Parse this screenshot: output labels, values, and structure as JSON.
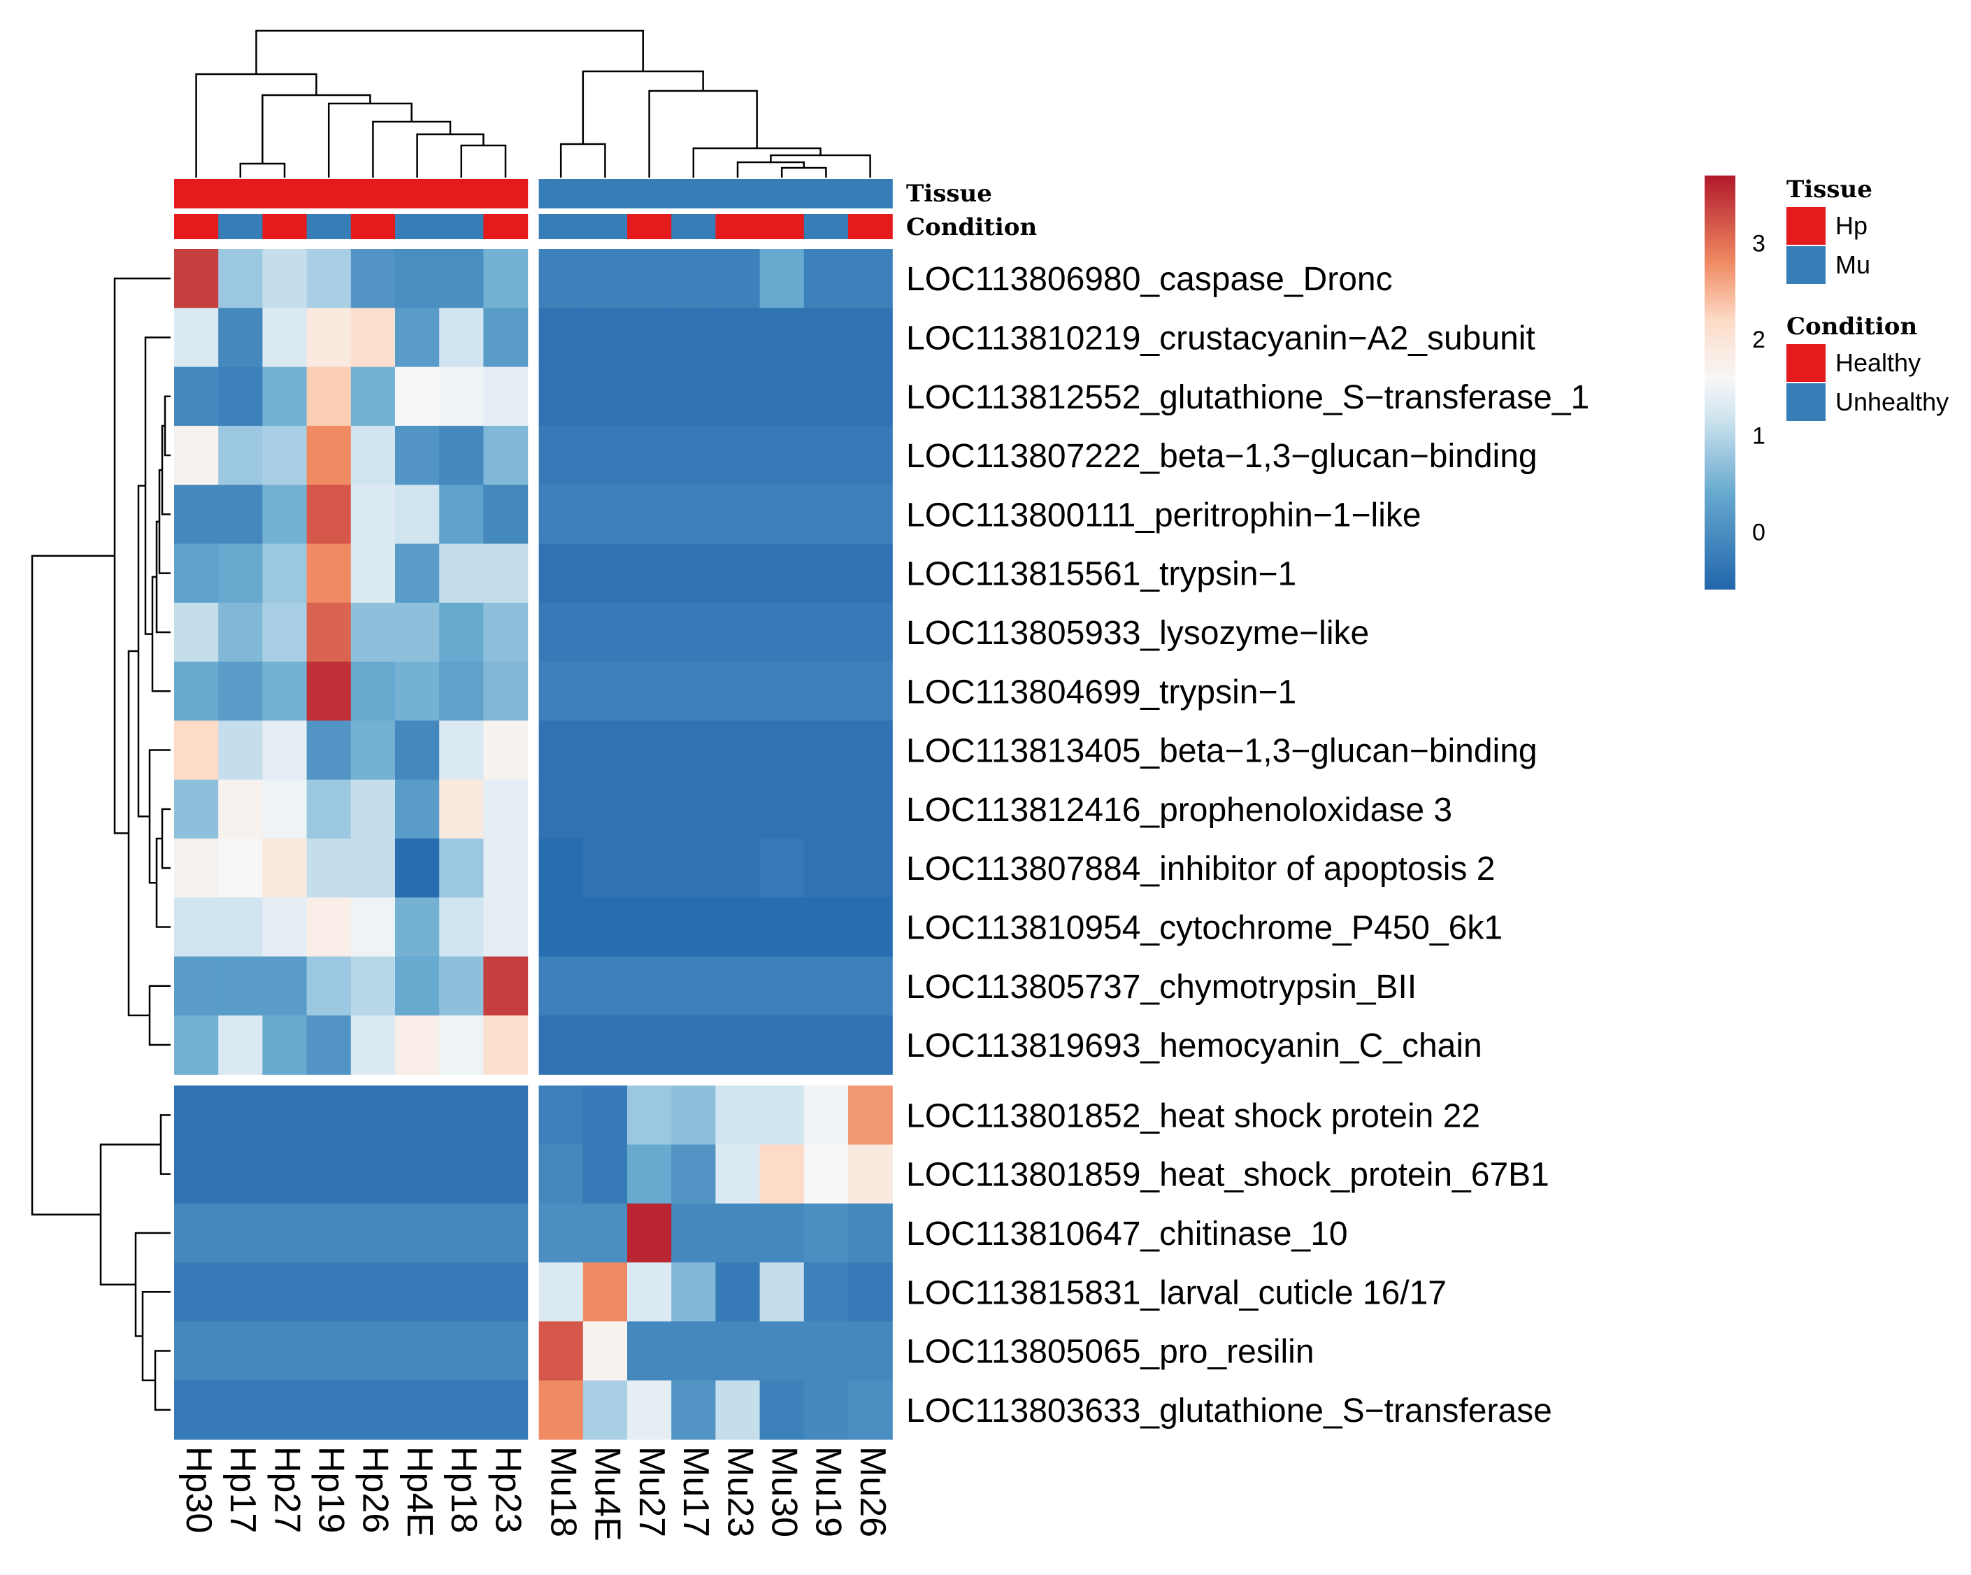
{
  "chart_data": {
    "type": "heatmap",
    "columns": [
      "Hp30",
      "Hp17",
      "Hp27",
      "Hp19",
      "Hp26",
      "Hp4E",
      "Hp18",
      "Hp23",
      "Mu18",
      "Mu4E",
      "Mu27",
      "Mu17",
      "Mu23",
      "Mu30",
      "Mu19",
      "Mu26"
    ],
    "rows": [
      "LOC113806980_caspase_Dronc",
      "LOC113810219_crustacyanin−A2_subunit",
      "LOC113812552_glutathione_S−transferase_1",
      "LOC113807222_beta−1,3−glucan−binding",
      "LOC113800111_peritrophin−1−like",
      "LOC113815561_trypsin−1",
      "LOC113805933_lysozyme−like",
      "LOC113804699_trypsin−1",
      "LOC113813405_beta−1,3−glucan−binding",
      "LOC113812416_prophenoloxidase 3",
      "LOC113807884_inhibitor of apoptosis 2",
      "LOC113810954_cytochrome_P450_6k1",
      "LOC113805737_chymotrypsin_BII",
      "LOC113819693_hemocyanin_C_chain",
      "LOC113801852_heat shock protein 22",
      "LOC113801859_heat_shock_protein_67B1",
      "LOC113810647_chitinase_10",
      "LOC113815831_larval_cuticle 16/17",
      "LOC113805065_pro_resilin",
      "LOC113803633_glutathione_S−transferase"
    ],
    "values": [
      [
        3.4,
        0.8,
        1.1,
        0.9,
        0.1,
        0.0,
        0.0,
        0.5,
        -0.2,
        -0.2,
        -0.2,
        -0.2,
        -0.2,
        0.4,
        -0.2,
        -0.2
      ],
      [
        1.3,
        -0.1,
        1.3,
        1.9,
        2.1,
        0.2,
        1.2,
        0.2,
        -0.4,
        -0.4,
        -0.4,
        -0.4,
        -0.4,
        -0.4,
        -0.4,
        -0.4
      ],
      [
        -0.1,
        -0.2,
        0.5,
        2.3,
        0.5,
        1.6,
        1.5,
        1.4,
        -0.4,
        -0.4,
        -0.4,
        -0.4,
        -0.4,
        -0.4,
        -0.4,
        -0.4
      ],
      [
        1.7,
        0.8,
        0.9,
        2.8,
        1.2,
        0.1,
        -0.1,
        0.6,
        -0.3,
        -0.3,
        -0.3,
        -0.3,
        -0.3,
        -0.3,
        -0.3,
        -0.3
      ],
      [
        -0.1,
        -0.1,
        0.5,
        3.2,
        1.3,
        1.2,
        0.3,
        -0.1,
        -0.2,
        -0.2,
        -0.2,
        -0.2,
        -0.2,
        -0.2,
        -0.2,
        -0.2
      ],
      [
        0.3,
        0.4,
        0.8,
        2.8,
        1.3,
        0.2,
        1.1,
        1.1,
        -0.4,
        -0.4,
        -0.4,
        -0.4,
        -0.4,
        -0.4,
        -0.4,
        -0.4
      ],
      [
        1.1,
        0.6,
        0.9,
        3.1,
        0.7,
        0.7,
        0.4,
        0.7,
        -0.3,
        -0.3,
        -0.3,
        -0.3,
        -0.3,
        -0.3,
        -0.3,
        -0.3
      ],
      [
        0.4,
        0.2,
        0.5,
        3.5,
        0.4,
        0.5,
        0.3,
        0.6,
        -0.2,
        -0.2,
        -0.2,
        -0.2,
        -0.2,
        -0.2,
        -0.2,
        -0.2
      ],
      [
        2.2,
        1.1,
        1.4,
        0.1,
        0.5,
        -0.1,
        1.3,
        1.7,
        -0.4,
        -0.4,
        -0.4,
        -0.4,
        -0.4,
        -0.4,
        -0.4,
        -0.4
      ],
      [
        0.7,
        1.7,
        1.5,
        0.8,
        1.1,
        0.2,
        1.9,
        1.4,
        -0.4,
        -0.4,
        -0.4,
        -0.4,
        -0.4,
        -0.4,
        -0.4,
        -0.4
      ],
      [
        1.7,
        1.6,
        1.9,
        1.1,
        1.1,
        -0.5,
        0.8,
        1.4,
        -0.5,
        -0.4,
        -0.4,
        -0.4,
        -0.4,
        -0.3,
        -0.4,
        -0.4
      ],
      [
        1.2,
        1.2,
        1.4,
        1.8,
        1.5,
        0.5,
        1.2,
        1.4,
        -0.5,
        -0.5,
        -0.5,
        -0.5,
        -0.5,
        -0.5,
        -0.5,
        -0.5
      ],
      [
        0.2,
        0.2,
        0.2,
        0.8,
        1.0,
        0.4,
        0.7,
        3.4,
        -0.2,
        -0.2,
        -0.2,
        -0.2,
        -0.2,
        -0.2,
        -0.2,
        -0.2
      ],
      [
        0.5,
        1.3,
        0.4,
        0.1,
        1.3,
        1.8,
        1.5,
        2.1,
        -0.4,
        -0.4,
        -0.4,
        -0.4,
        -0.4,
        -0.4,
        -0.4,
        -0.4
      ],
      [
        -0.4,
        -0.4,
        -0.4,
        -0.4,
        -0.4,
        -0.4,
        -0.4,
        -0.4,
        -0.2,
        -0.3,
        0.8,
        0.7,
        1.2,
        1.2,
        1.5,
        2.7
      ],
      [
        -0.4,
        -0.4,
        -0.4,
        -0.4,
        -0.4,
        -0.4,
        -0.4,
        -0.4,
        -0.1,
        -0.3,
        0.4,
        0.1,
        1.3,
        2.2,
        1.6,
        1.9
      ],
      [
        -0.1,
        -0.1,
        -0.1,
        -0.1,
        -0.1,
        -0.1,
        -0.1,
        -0.1,
        0.0,
        0.0,
        3.6,
        -0.1,
        -0.1,
        -0.1,
        0.0,
        -0.1
      ],
      [
        -0.3,
        -0.3,
        -0.3,
        -0.3,
        -0.3,
        -0.3,
        -0.3,
        -0.3,
        1.3,
        2.8,
        1.3,
        0.6,
        -0.3,
        1.1,
        -0.2,
        -0.3
      ],
      [
        -0.1,
        -0.1,
        -0.1,
        -0.1,
        -0.1,
        -0.1,
        -0.1,
        -0.1,
        3.2,
        1.7,
        -0.1,
        -0.1,
        -0.1,
        -0.1,
        -0.1,
        -0.1
      ],
      [
        -0.3,
        -0.3,
        -0.3,
        -0.3,
        -0.3,
        -0.3,
        -0.3,
        -0.3,
        2.8,
        0.9,
        1.4,
        0.1,
        1.1,
        -0.2,
        -0.1,
        0.0
      ]
    ],
    "row_split_after": 14,
    "col_split_after": 8,
    "annotations": {
      "Tissue": [
        "Hp",
        "Hp",
        "Hp",
        "Hp",
        "Hp",
        "Hp",
        "Hp",
        "Hp",
        "Mu",
        "Mu",
        "Mu",
        "Mu",
        "Mu",
        "Mu",
        "Mu",
        "Mu"
      ],
      "Condition": [
        "Healthy",
        "Unhealthy",
        "Healthy",
        "Unhealthy",
        "Healthy",
        "Unhealthy",
        "Unhealthy",
        "Healthy",
        "Unhealthy",
        "Unhealthy",
        "Healthy",
        "Unhealthy",
        "Healthy",
        "Healthy",
        "Unhealthy",
        "Healthy"
      ]
    },
    "annotation_labels": [
      "Tissue",
      "Condition"
    ],
    "color_scale": {
      "min": -0.6,
      "max": 3.7,
      "ticks": [
        "0",
        "1",
        "2",
        "3"
      ],
      "tick_values": [
        0,
        1,
        2,
        3
      ],
      "stops": [
        {
          "value": -0.6,
          "color": "#2166ac"
        },
        {
          "value": 0.4,
          "color": "#67a9cf"
        },
        {
          "value": 1.2,
          "color": "#d1e5f0"
        },
        {
          "value": 1.6,
          "color": "#f7f7f7"
        },
        {
          "value": 2.2,
          "color": "#fddbc7"
        },
        {
          "value": 2.8,
          "color": "#ef8a62"
        },
        {
          "value": 3.7,
          "color": "#b2182b"
        }
      ]
    },
    "legend": {
      "tissue_title": "Tissue",
      "tissue_items": [
        {
          "label": "Hp",
          "color": "#e41a1c"
        },
        {
          "label": "Mu",
          "color": "#377eb8"
        }
      ],
      "condition_title": "Condition",
      "condition_items": [
        {
          "label": "Healthy",
          "color": "#e41a1c"
        },
        {
          "label": "Unhealthy",
          "color": "#377eb8"
        }
      ]
    },
    "annotation_colors": {
      "Hp": "#e41a1c",
      "Mu": "#377eb8",
      "Healthy": "#e41a1c",
      "Unhealthy": "#377eb8"
    }
  }
}
